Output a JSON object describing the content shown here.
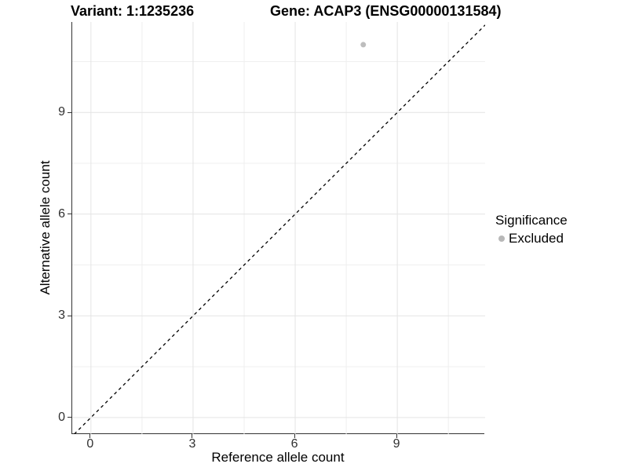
{
  "chart_data": {
    "type": "scatter",
    "title_left": "Variant: 1:1235236",
    "title_right": "Gene: ACAP3 (ENSG00000131584)",
    "xlabel": "Reference allele count",
    "ylabel": "Alternative allele count",
    "xlim": [
      -0.55,
      11.58
    ],
    "ylim": [
      -0.49,
      11.67
    ],
    "x_major_ticks": [
      0,
      3,
      6,
      9
    ],
    "y_major_ticks": [
      0,
      3,
      6,
      9
    ],
    "x_minor_ticks": [
      1.5,
      4.5,
      7.5,
      10.5
    ],
    "y_minor_ticks": [
      1.5,
      4.5,
      7.5,
      10.5
    ],
    "grid": true,
    "points": [
      {
        "x": 8,
        "y": 11,
        "significance": "Excluded"
      }
    ],
    "identity_line": {
      "style": "dashed",
      "equation": "y = x"
    },
    "legend": {
      "position": "right",
      "title": "Significance",
      "entries": [
        {
          "label": "Excluded",
          "color": "#b8b8b8"
        }
      ]
    }
  },
  "colors": {
    "background": "#ffffff",
    "point": "#bdbdbd",
    "grid_major": "#e4e4e4",
    "grid_minor": "#efefef",
    "axis_line": "#333333",
    "dashed_line": "#000000",
    "text": "#000000",
    "tick_text": "#303030"
  }
}
